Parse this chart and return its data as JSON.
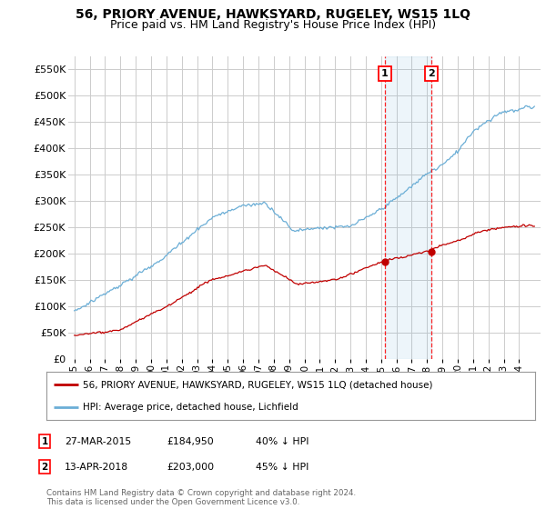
{
  "title": "56, PRIORY AVENUE, HAWKSYARD, RUGELEY, WS15 1LQ",
  "subtitle": "Price paid vs. HM Land Registry's House Price Index (HPI)",
  "title_fontsize": 10,
  "subtitle_fontsize": 9,
  "background_color": "#ffffff",
  "plot_bg_color": "#ffffff",
  "grid_color": "#cccccc",
  "ylim": [
    0,
    575000
  ],
  "yticks": [
    0,
    50000,
    100000,
    150000,
    200000,
    250000,
    300000,
    350000,
    400000,
    450000,
    500000,
    550000
  ],
  "ytick_labels": [
    "£0",
    "£50K",
    "£100K",
    "£150K",
    "£200K",
    "£250K",
    "£300K",
    "£350K",
    "£400K",
    "£450K",
    "£500K",
    "£550K"
  ],
  "hpi_color": "#6baed6",
  "price_color": "#c00000",
  "sale1": {
    "label": "1",
    "date": "27-MAR-2015",
    "price": 184950,
    "price_str": "£184,950",
    "pct": "40% ↓ HPI",
    "x": 2015.23
  },
  "sale2": {
    "label": "2",
    "date": "13-APR-2018",
    "price": 203000,
    "price_str": "£203,000",
    "pct": "45% ↓ HPI",
    "x": 2018.28
  },
  "legend_line1": "56, PRIORY AVENUE, HAWKSYARD, RUGELEY, WS15 1LQ (detached house)",
  "legend_line2": "HPI: Average price, detached house, Lichfield",
  "footer": "Contains HM Land Registry data © Crown copyright and database right 2024.\nThis data is licensed under the Open Government Licence v3.0."
}
